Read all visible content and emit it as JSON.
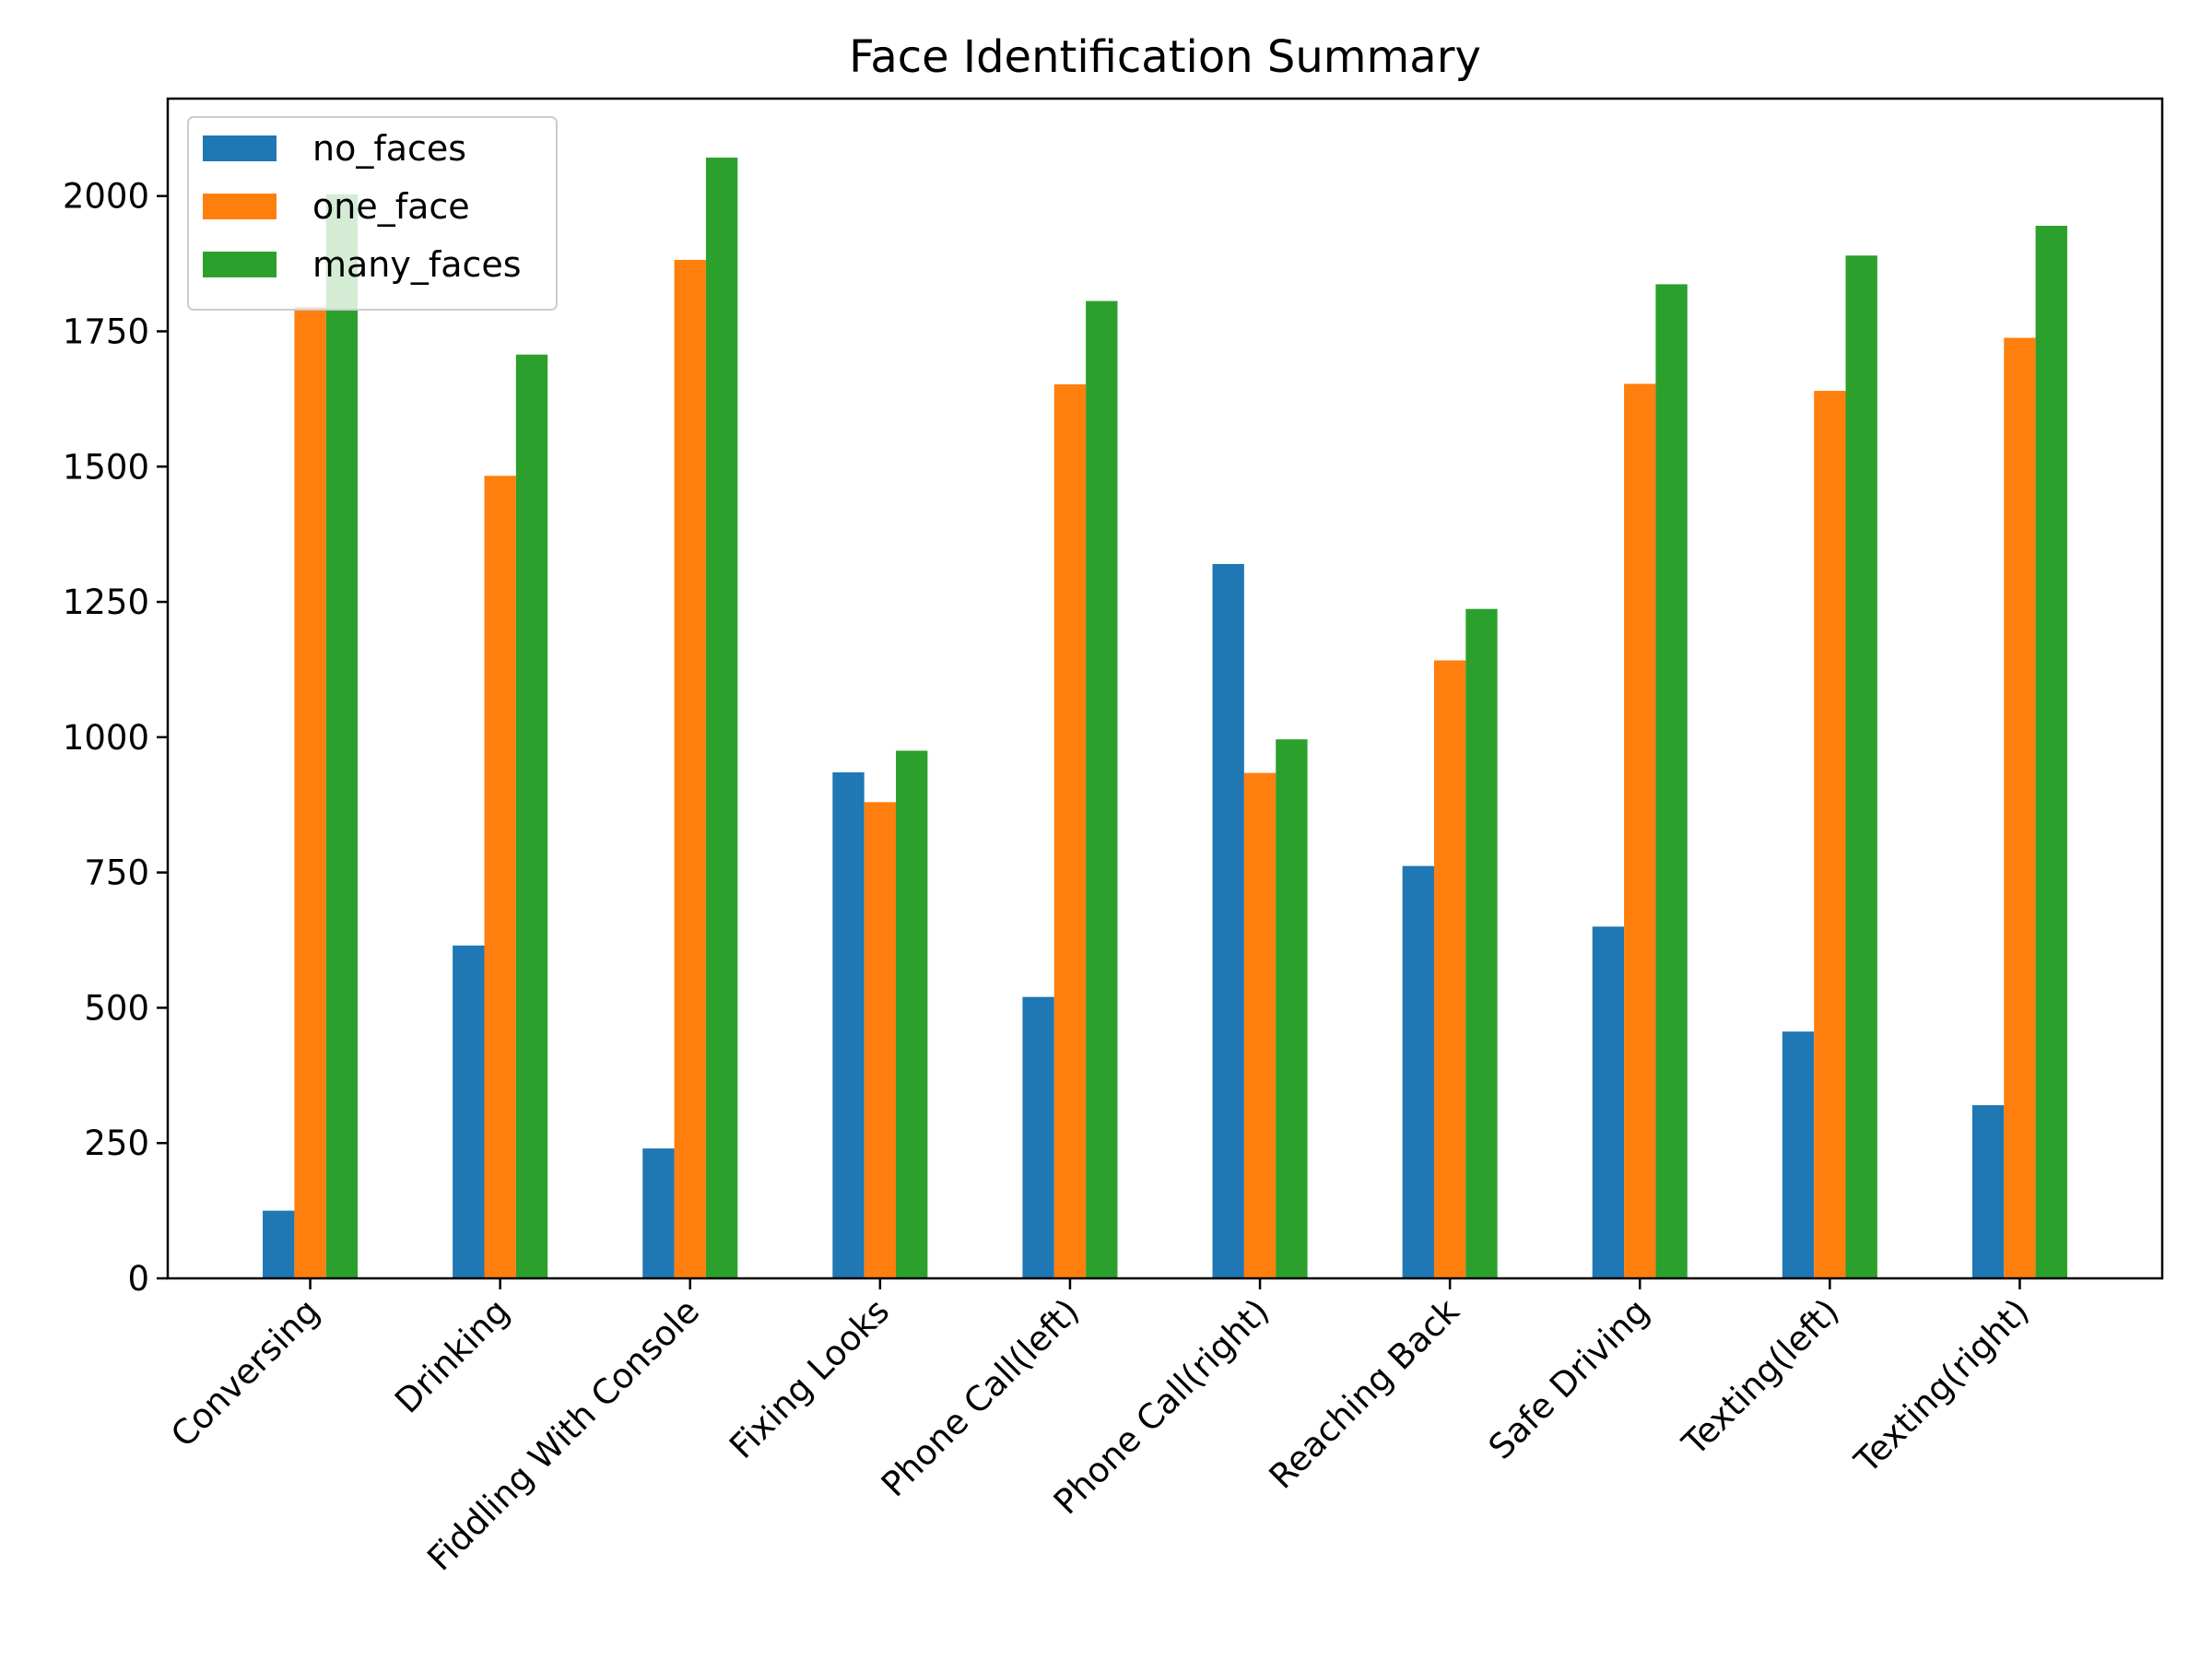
{
  "chart_data": {
    "type": "bar",
    "title": "Face Identification Summary",
    "xlabel": "",
    "ylabel": "",
    "categories": [
      "Conversing",
      "Drinking",
      "Fiddling With Console",
      "Fixing Looks",
      "Phone Call(left)",
      "Phone Call(right)",
      "Reaching Back",
      "Safe Driving",
      "Texting(left)",
      "Texting(right)"
    ],
    "series": [
      {
        "name": "no_faces",
        "color": "#1f77b4",
        "values": [
          125,
          615,
          240,
          935,
          520,
          1320,
          762,
          650,
          456,
          320
        ]
      },
      {
        "name": "one_face",
        "color": "#ff7f0e",
        "values": [
          1795,
          1483,
          1882,
          880,
          1652,
          934,
          1142,
          1653,
          1640,
          1738
        ]
      },
      {
        "name": "many_faces",
        "color": "#2ca02c",
        "values": [
          2003,
          1707,
          2071,
          975,
          1806,
          996,
          1237,
          1837,
          1890,
          1945
        ]
      }
    ],
    "ylim": [
      0,
      2180
    ],
    "yticks": [
      0,
      250,
      500,
      750,
      1000,
      1250,
      1500,
      1750,
      2000
    ],
    "xtick_rotation_deg": 45,
    "grid": false,
    "legend": "top-left"
  }
}
